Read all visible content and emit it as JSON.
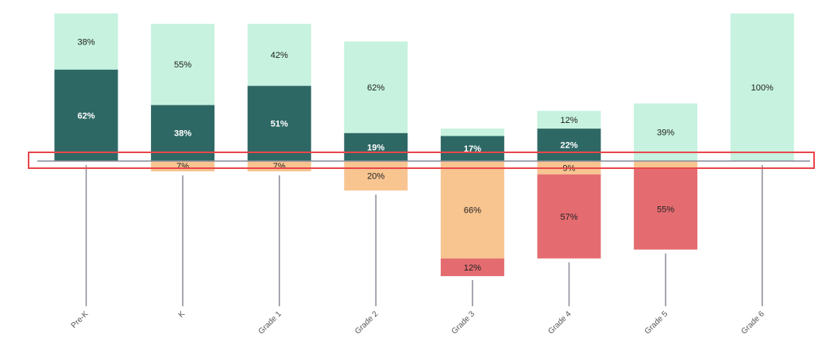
{
  "chart_data": {
    "type": "bar",
    "stacked": true,
    "diverging": true,
    "categories": [
      "Pre-K",
      "K",
      "Grade 1",
      "Grade 2",
      "Grade 3",
      "Grade 4",
      "Grade 5",
      "Grade 6"
    ],
    "series": [
      {
        "direction": "up",
        "color": "#2e6865",
        "text_color": "#ffffff",
        "values": [
          62,
          38,
          51,
          19,
          17,
          22,
          0,
          0
        ]
      },
      {
        "direction": "up",
        "color": "#c6f2df",
        "text_color": "#222222",
        "values": [
          38,
          55,
          42,
          62,
          5,
          12,
          39,
          100
        ]
      },
      {
        "direction": "down",
        "color": "#f8c591",
        "text_color": "#222222",
        "values": [
          0,
          7,
          7,
          20,
          66,
          9,
          5,
          0
        ]
      },
      {
        "direction": "down",
        "color": "#e46c70",
        "text_color": "#222222",
        "values": [
          0,
          0,
          0,
          0,
          12,
          57,
          55,
          0
        ]
      }
    ],
    "labels": [
      [
        "62%",
        "38%",
        "",
        ""
      ],
      [
        "38%",
        "55%",
        "7%",
        ""
      ],
      [
        "51%",
        "42%",
        "7%",
        ""
      ],
      [
        "19%",
        "62%",
        "20%",
        ""
      ],
      [
        "17%",
        "",
        "66%",
        "12%"
      ],
      [
        "22%",
        "12%",
        "9%",
        "57%"
      ],
      [
        "",
        "39%",
        "",
        "55%"
      ],
      [
        "",
        "100%",
        "",
        ""
      ]
    ],
    "title": "",
    "xlabel": "",
    "ylabel": "",
    "grid": false,
    "legend": "none",
    "baseline_color": "#8a8a99",
    "highlight_color": "#e8474c"
  }
}
